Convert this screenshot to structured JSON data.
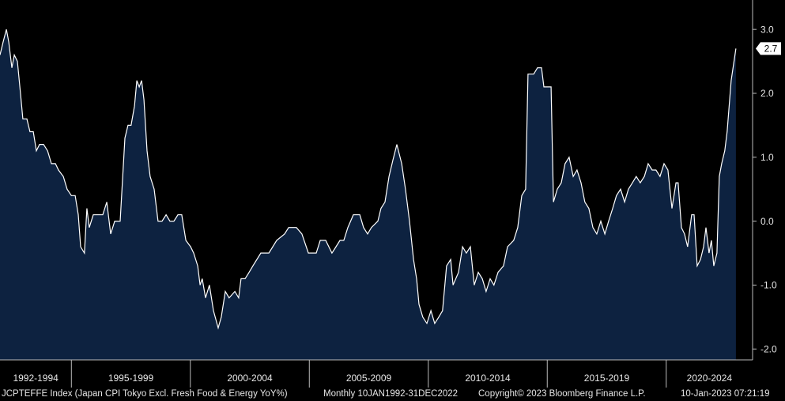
{
  "chart_data": {
    "type": "area",
    "color": "#0d2240",
    "line_color": "#ffffff",
    "x": [
      1992.0,
      1992.13,
      1992.27,
      1992.37,
      1992.5,
      1992.6,
      1992.73,
      1992.86,
      1992.96,
      1993.13,
      1993.26,
      1993.4,
      1993.53,
      1993.66,
      1993.83,
      1994.0,
      1994.16,
      1994.33,
      1994.46,
      1994.66,
      1994.82,
      1995.0,
      1995.16,
      1995.29,
      1995.39,
      1995.55,
      1995.65,
      1995.75,
      1995.92,
      1996.15,
      1996.32,
      1996.49,
      1996.65,
      1996.82,
      1997.05,
      1997.25,
      1997.38,
      1997.51,
      1997.65,
      1997.75,
      1997.85,
      1997.95,
      1998.05,
      1998.18,
      1998.31,
      1998.48,
      1998.64,
      1998.81,
      1998.98,
      1999.14,
      1999.31,
      1999.48,
      1999.64,
      1999.81,
      2000.01,
      2000.14,
      2000.31,
      2000.41,
      2000.5,
      2000.64,
      2000.8,
      2000.97,
      2001.17,
      2001.3,
      2001.47,
      2001.63,
      2001.87,
      2002.03,
      2002.13,
      2002.3,
      2002.47,
      2002.63,
      2002.96,
      2003.3,
      2003.63,
      2003.96,
      2004.13,
      2004.46,
      2004.69,
      2004.96,
      2005.29,
      2005.46,
      2005.69,
      2005.95,
      2006.12,
      2006.29,
      2006.45,
      2006.62,
      2006.85,
      2007.12,
      2007.28,
      2007.45,
      2007.61,
      2007.88,
      2008.01,
      2008.18,
      2008.35,
      2008.51,
      2008.68,
      2008.88,
      2009.04,
      2009.21,
      2009.38,
      2009.51,
      2009.61,
      2009.77,
      2009.94,
      2010.11,
      2010.27,
      2010.44,
      2010.6,
      2010.77,
      2010.94,
      2011.04,
      2011.27,
      2011.44,
      2011.6,
      2011.77,
      2011.93,
      2012.1,
      2012.27,
      2012.43,
      2012.6,
      2012.76,
      2012.93,
      2013.16,
      2013.33,
      2013.59,
      2013.76,
      2013.93,
      2014.09,
      2014.19,
      2014.43,
      2014.59,
      2014.76,
      2014.86,
      2015.16,
      2015.26,
      2015.42,
      2015.59,
      2015.75,
      2015.92,
      2016.09,
      2016.25,
      2016.42,
      2016.58,
      2016.75,
      2016.92,
      2017.08,
      2017.25,
      2017.42,
      2017.58,
      2017.75,
      2017.91,
      2018.08,
      2018.25,
      2018.41,
      2018.58,
      2018.74,
      2018.91,
      2019.08,
      2019.24,
      2019.41,
      2019.57,
      2019.74,
      2019.91,
      2020.07,
      2020.24,
      2020.41,
      2020.5,
      2020.64,
      2020.77,
      2020.9,
      2021.07,
      2021.17,
      2021.3,
      2021.44,
      2021.57,
      2021.67,
      2021.8,
      2021.9,
      2022.0,
      2022.13,
      2022.23,
      2022.33,
      2022.46,
      2022.56,
      2022.73,
      2022.93
    ],
    "values": [
      2.6,
      2.8,
      3.0,
      2.8,
      2.4,
      2.6,
      2.5,
      2.0,
      1.6,
      1.6,
      1.4,
      1.4,
      1.1,
      1.2,
      1.2,
      1.1,
      0.9,
      0.9,
      0.8,
      0.7,
      0.5,
      0.4,
      0.4,
      0.1,
      -0.4,
      -0.5,
      0.2,
      -0.1,
      0.1,
      0.1,
      0.1,
      0.3,
      -0.2,
      0.0,
      0.0,
      1.3,
      1.5,
      1.5,
      1.8,
      2.2,
      2.1,
      2.2,
      1.9,
      1.1,
      0.7,
      0.5,
      0.0,
      0.0,
      0.1,
      0.0,
      0.0,
      0.1,
      0.1,
      -0.3,
      -0.4,
      -0.5,
      -0.7,
      -1.0,
      -0.9,
      -1.2,
      -1.0,
      -1.4,
      -1.67,
      -1.5,
      -1.1,
      -1.2,
      -1.1,
      -1.2,
      -0.9,
      -0.9,
      -0.8,
      -0.7,
      -0.5,
      -0.5,
      -0.3,
      -0.2,
      -0.1,
      -0.1,
      -0.2,
      -0.5,
      -0.5,
      -0.3,
      -0.3,
      -0.5,
      -0.4,
      -0.3,
      -0.3,
      -0.1,
      0.1,
      0.1,
      -0.1,
      -0.2,
      -0.1,
      0.0,
      0.2,
      0.3,
      0.7,
      0.95,
      1.2,
      0.9,
      0.5,
      0.0,
      -0.6,
      -0.9,
      -1.3,
      -1.5,
      -1.6,
      -1.4,
      -1.6,
      -1.5,
      -1.4,
      -0.7,
      -0.6,
      -1.0,
      -0.8,
      -0.4,
      -0.5,
      -0.4,
      -1.0,
      -0.8,
      -0.9,
      -1.1,
      -0.9,
      -1.0,
      -0.8,
      -0.7,
      -0.4,
      -0.3,
      -0.1,
      0.4,
      0.5,
      2.3,
      2.3,
      2.4,
      2.4,
      2.1,
      2.1,
      0.3,
      0.5,
      0.6,
      0.9,
      1.0,
      0.7,
      0.8,
      0.6,
      0.3,
      0.2,
      -0.1,
      -0.2,
      0.0,
      -0.2,
      0.0,
      0.2,
      0.4,
      0.5,
      0.3,
      0.5,
      0.6,
      0.7,
      0.6,
      0.7,
      0.9,
      0.8,
      0.8,
      0.7,
      0.9,
      0.8,
      0.2,
      0.6,
      0.6,
      -0.1,
      -0.2,
      -0.4,
      0.1,
      0.1,
      -0.7,
      -0.6,
      -0.4,
      -0.1,
      -0.5,
      -0.3,
      -0.7,
      -0.5,
      0.7,
      0.9,
      1.1,
      1.4,
      2.2,
      2.7
    ],
    "xlim": [
      1992,
      2023.63
    ],
    "ylim": [
      -2.17,
      3.46
    ],
    "yticks": [
      {
        "value": 3,
        "label": "3.0"
      },
      {
        "value": 2,
        "label": "2.0"
      },
      {
        "value": 1,
        "label": "1.0"
      },
      {
        "value": 0,
        "label": "0.0"
      },
      {
        "value": -1,
        "label": "-1.0"
      },
      {
        "value": -2,
        "label": "-2.0"
      }
    ],
    "xticks": [
      {
        "value": 1992,
        "label": "1992-1994"
      },
      {
        "value": 1995,
        "label": "1995-1999"
      },
      {
        "value": 2000,
        "label": "2000-2004"
      },
      {
        "value": 2005,
        "label": "2005-2009"
      },
      {
        "value": 2010,
        "label": "2010-2014"
      },
      {
        "value": 2015,
        "label": "2015-2019"
      },
      {
        "value": 2020,
        "label": "2020-2024"
      }
    ],
    "footer": [
      "JCPTEFFE Index (Japan CPI Tokyo Excl. Fresh Food & Energy YoY%)",
      "Monthly 10JAN1992-31DEC2022",
      "Copyright© 2023 Bloomberg Finance L.P.",
      "10-Jan-2023 07:21:19"
    ]
  }
}
